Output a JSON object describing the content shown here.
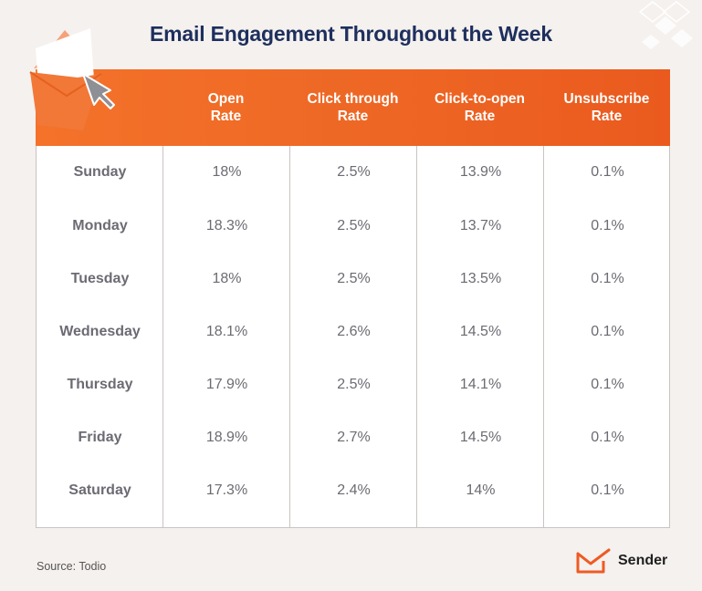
{
  "title": "Email Engagement Throughout the Week",
  "source": "Source: Todio",
  "brand": "Sender",
  "colors": {
    "header": "#ef6a26",
    "title": "#1e2f5e",
    "background": "#f5f1ee"
  },
  "chart_data": {
    "type": "table",
    "columns": [
      "",
      "Open\nRate",
      "Click through\nRate",
      "Click-to-open\nRate",
      "Unsubscribe\nRate"
    ],
    "rows": [
      [
        "Sunday",
        "18%",
        "2.5%",
        "13.9%",
        "0.1%"
      ],
      [
        "Monday",
        "18.3%",
        "2.5%",
        "13.7%",
        "0.1%"
      ],
      [
        "Tuesday",
        "18%",
        "2.5%",
        "13.5%",
        "0.1%"
      ],
      [
        "Wednesday",
        "18.1%",
        "2.6%",
        "14.5%",
        "0.1%"
      ],
      [
        "Thursday",
        "17.9%",
        "2.5%",
        "14.1%",
        "0.1%"
      ],
      [
        "Friday",
        "18.9%",
        "2.7%",
        "14.5%",
        "0.1%"
      ],
      [
        "Saturday",
        "17.3%",
        "2.4%",
        "14%",
        "0.1%"
      ]
    ]
  }
}
